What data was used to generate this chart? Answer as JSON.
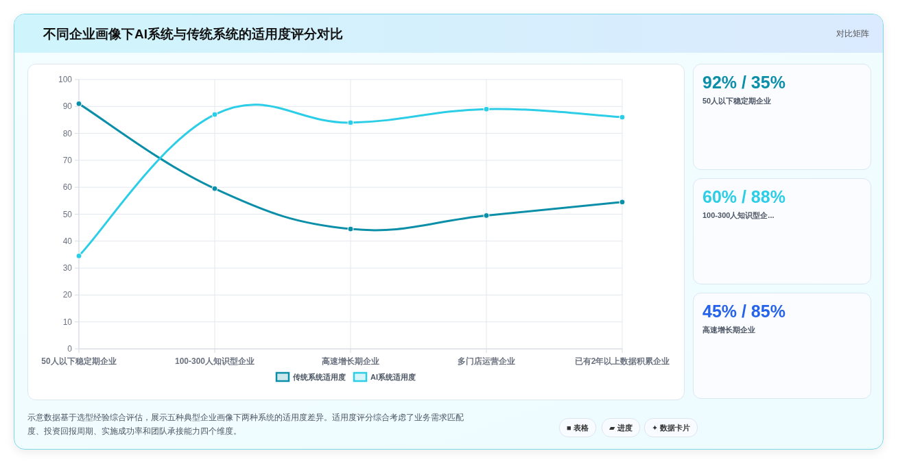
{
  "chart_data": [
    {
      "type": "line",
      "title": "不同企业画像下AI系统与传统系统的适用度评分对比",
      "categories": [
        "50人以下稳定期企业",
        "100-300人知识型企业",
        "高速增长期企业",
        "多门店运营企业",
        "已有2年以上数据积累企业"
      ],
      "series": [
        {
          "name": "传统系统适用度",
          "color": "#0b8fa8",
          "values": [
            91,
            59.5,
            44.5,
            49.5,
            54.5
          ]
        },
        {
          "name": "AI系统适用度",
          "color": "#2ccde6",
          "values": [
            34.5,
            87,
            84,
            89,
            86
          ]
        }
      ],
      "ylim": [
        0,
        100
      ],
      "yticks": [
        0,
        10,
        20,
        30,
        40,
        50,
        60,
        70,
        80,
        90,
        100
      ],
      "grid": true,
      "legend": "bottom",
      "marker": "circle",
      "line_style": "solid",
      "annotations": [
        "对比矩阵",
        "示意数据基于选型经验综合评估，展示五种典型企业画像下两种系统的适用度差异。适用度评分综合考虑了业务需求匹配度、投资回报周期、实施成功率和团队承接能力四个维度。",
        "■ 表格",
        "▰ 进度",
        "✦ 数据卡片"
      ]
    },
    {
      "type": "other",
      "annotations": [
        "92% / 35%",
        "50人以下稳定期企业",
        "60% / 88%",
        "100-300人知识型企...",
        "45% / 85%",
        "高速增长期企业"
      ]
    }
  ]
}
